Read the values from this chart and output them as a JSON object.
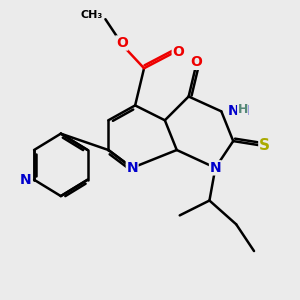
{
  "bg_color": "#ebebeb",
  "bond_color": "#000000",
  "bond_width": 1.8,
  "atom_colors": {
    "N": "#0000cc",
    "O": "#ee0000",
    "S": "#aaaa00",
    "H": "#558877",
    "C": "#000000"
  },
  "font_size": 9,
  "fig_size": [
    3.0,
    3.0
  ],
  "dpi": 100
}
